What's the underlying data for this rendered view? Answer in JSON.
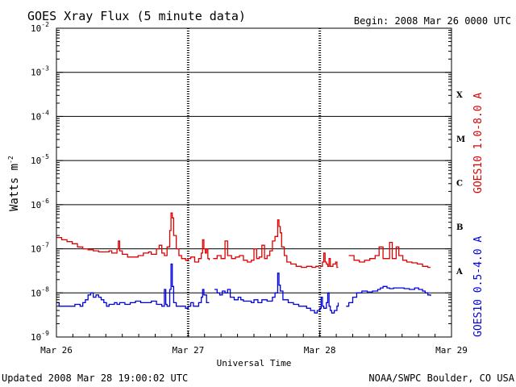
{
  "header": {
    "title": "GOES Xray Flux (5 minute data)",
    "begin": "Begin:  2008 Mar 26 0000 UTC"
  },
  "footer": {
    "updated": "Updated 2008 Mar 28 19:00:02 UTC",
    "credit": "NOAA/SWPC Boulder, CO USA"
  },
  "colors": {
    "long": "#dd0000",
    "short": "#0000dd",
    "axis": "#000000"
  },
  "chart_data": {
    "type": "line",
    "title": "GOES Xray Flux (5 minute data)",
    "xlabel": "Universal Time",
    "ylabel": {
      "base": "Watts m",
      "sup": "-2"
    },
    "y_scale": "log",
    "ylim": [
      1e-09,
      0.01
    ],
    "xlim": [
      "2008-03-26",
      "2008-03-29"
    ],
    "y_ticks": [
      {
        "base": "10",
        "exp": "-2",
        "value": 0.01
      },
      {
        "base": "10",
        "exp": "-3",
        "value": 0.001
      },
      {
        "base": "10",
        "exp": "-4",
        "value": 0.0001
      },
      {
        "base": "10",
        "exp": "-5",
        "value": 1e-05
      },
      {
        "base": "10",
        "exp": "-6",
        "value": 1e-06
      },
      {
        "base": "10",
        "exp": "-7",
        "value": 1e-07
      },
      {
        "base": "10",
        "exp": "-8",
        "value": 1e-08
      },
      {
        "base": "10",
        "exp": "-9",
        "value": 1e-09
      }
    ],
    "x_ticks": [
      {
        "label": "Mar 26",
        "value": "2008-03-26"
      },
      {
        "label": "Mar 27",
        "value": "2008-03-27"
      },
      {
        "label": "Mar 28",
        "value": "2008-03-28"
      },
      {
        "label": "Mar 29",
        "value": "2008-03-29"
      }
    ],
    "flare_classes": [
      {
        "label": "X",
        "value": 0.0001
      },
      {
        "label": "M",
        "value": 1e-05
      },
      {
        "label": "C",
        "value": 1e-06
      },
      {
        "label": "B",
        "value": 1e-07
      },
      {
        "label": "A",
        "value": 1e-08
      }
    ],
    "grid": "horizontal lines at each decade from 1e-3 to 1e-8",
    "series": [
      {
        "name": "GOES10 1.0-8.0 A",
        "color": "#dd0000",
        "segments": [
          [
            [
              0.0,
              1.8e-07
            ],
            [
              0.04,
              1.6e-07
            ],
            [
              0.08,
              1.45e-07
            ],
            [
              0.12,
              1.3e-07
            ],
            [
              0.16,
              1.1e-07
            ],
            [
              0.2,
              1e-07
            ],
            [
              0.24,
              9.5e-08
            ],
            [
              0.28,
              9e-08
            ],
            [
              0.32,
              8.5e-08
            ],
            [
              0.36,
              8.5e-08
            ],
            [
              0.4,
              9e-08
            ],
            [
              0.42,
              8e-08
            ],
            [
              0.44,
              8e-08
            ],
            [
              0.46,
              1e-07
            ],
            [
              0.47,
              1.5e-07
            ],
            [
              0.48,
              9e-08
            ],
            [
              0.5,
              7.5e-08
            ],
            [
              0.54,
              6.5e-08
            ],
            [
              0.58,
              6.5e-08
            ],
            [
              0.62,
              7e-08
            ],
            [
              0.66,
              8e-08
            ],
            [
              0.7,
              8.5e-08
            ],
            [
              0.72,
              7.5e-08
            ],
            [
              0.74,
              7.5e-08
            ],
            [
              0.76,
              1e-07
            ],
            [
              0.78,
              1.2e-07
            ],
            [
              0.8,
              8e-08
            ],
            [
              0.82,
              7e-08
            ],
            [
              0.84,
              1.1e-07
            ],
            [
              0.86,
              2.6e-07
            ],
            [
              0.87,
              6.5e-07
            ],
            [
              0.88,
              5e-07
            ],
            [
              0.89,
              2e-07
            ],
            [
              0.91,
              1e-07
            ],
            [
              0.93,
              7e-08
            ],
            [
              0.95,
              6e-08
            ],
            [
              0.98,
              5.5e-08
            ],
            [
              1.0,
              6e-08
            ],
            [
              1.02,
              6.5e-08
            ],
            [
              1.05,
              5e-08
            ],
            [
              1.08,
              6e-08
            ],
            [
              1.1,
              8e-08
            ],
            [
              1.11,
              1.6e-07
            ],
            [
              1.12,
              1e-07
            ],
            [
              1.13,
              8e-08
            ],
            [
              1.14,
              1e-07
            ],
            [
              1.15,
              6e-08
            ],
            [
              1.16,
              5.5e-08
            ]
          ],
          [
            [
              1.19,
              6e-08
            ],
            [
              1.22,
              7e-08
            ],
            [
              1.25,
              6e-08
            ],
            [
              1.28,
              1.5e-07
            ],
            [
              1.3,
              7e-08
            ],
            [
              1.33,
              6e-08
            ],
            [
              1.36,
              6.5e-08
            ],
            [
              1.39,
              7e-08
            ],
            [
              1.42,
              5.5e-08
            ],
            [
              1.45,
              5e-08
            ],
            [
              1.48,
              5.5e-08
            ],
            [
              1.5,
              1e-07
            ],
            [
              1.52,
              6e-08
            ],
            [
              1.54,
              6.5e-08
            ],
            [
              1.56,
              1.2e-07
            ],
            [
              1.58,
              6e-08
            ],
            [
              1.6,
              7e-08
            ],
            [
              1.62,
              9e-08
            ],
            [
              1.64,
              1.5e-07
            ],
            [
              1.66,
              1.9e-07
            ],
            [
              1.68,
              4.5e-07
            ],
            [
              1.69,
              3.2e-07
            ],
            [
              1.7,
              2.3e-07
            ],
            [
              1.71,
              1.1e-07
            ],
            [
              1.73,
              7e-08
            ],
            [
              1.75,
              5e-08
            ],
            [
              1.78,
              4.5e-08
            ],
            [
              1.82,
              4e-08
            ],
            [
              1.86,
              3.8e-08
            ],
            [
              1.9,
              4e-08
            ],
            [
              1.94,
              3.8e-08
            ],
            [
              1.97,
              4e-08
            ],
            [
              1.99,
              3.8e-08
            ]
          ],
          [
            [
              2.0,
              4e-08
            ],
            [
              2.02,
              5e-08
            ],
            [
              2.03,
              8e-08
            ],
            [
              2.04,
              5e-08
            ],
            [
              2.05,
              4.5e-08
            ],
            [
              2.06,
              4e-08
            ],
            [
              2.07,
              6e-08
            ],
            [
              2.08,
              4e-08
            ],
            [
              2.09,
              4e-08
            ],
            [
              2.1,
              4.5e-08
            ],
            [
              2.12,
              5e-08
            ],
            [
              2.13,
              3.8e-08
            ],
            [
              2.14,
              3.8e-08
            ]
          ],
          [
            [
              2.22,
              7e-08
            ],
            [
              2.26,
              5.5e-08
            ],
            [
              2.3,
              5e-08
            ],
            [
              2.34,
              5.5e-08
            ],
            [
              2.38,
              6e-08
            ],
            [
              2.4,
              6e-08
            ],
            [
              2.42,
              7e-08
            ],
            [
              2.45,
              1.1e-07
            ],
            [
              2.48,
              6e-08
            ],
            [
              2.51,
              6e-08
            ],
            [
              2.53,
              1.4e-07
            ],
            [
              2.55,
              6e-08
            ],
            [
              2.58,
              1.1e-07
            ],
            [
              2.6,
              7e-08
            ],
            [
              2.63,
              5.5e-08
            ],
            [
              2.66,
              5e-08
            ],
            [
              2.7,
              4.8e-08
            ],
            [
              2.74,
              4.5e-08
            ],
            [
              2.78,
              4e-08
            ],
            [
              2.82,
              3.8e-08
            ],
            [
              2.84,
              3.8e-08
            ]
          ]
        ]
      },
      {
        "name": "GOES10 0.5-4.0 A",
        "color": "#0000dd",
        "segments": [
          [
            [
              0.0,
              6e-09
            ],
            [
              0.02,
              5e-09
            ],
            [
              0.06,
              5e-09
            ],
            [
              0.1,
              5e-09
            ],
            [
              0.12,
              5e-09
            ],
            [
              0.14,
              5.5e-09
            ],
            [
              0.18,
              5e-09
            ],
            [
              0.2,
              6e-09
            ],
            [
              0.22,
              7e-09
            ],
            [
              0.24,
              9e-09
            ],
            [
              0.26,
              1e-08
            ],
            [
              0.28,
              8e-09
            ],
            [
              0.3,
              9e-09
            ],
            [
              0.32,
              8e-09
            ],
            [
              0.34,
              7e-09
            ],
            [
              0.36,
              6e-09
            ],
            [
              0.38,
              5e-09
            ],
            [
              0.4,
              5.5e-09
            ],
            [
              0.44,
              6e-09
            ],
            [
              0.46,
              5.5e-09
            ],
            [
              0.48,
              6e-09
            ],
            [
              0.52,
              5.5e-09
            ],
            [
              0.56,
              6e-09
            ],
            [
              0.6,
              6.5e-09
            ],
            [
              0.64,
              6e-09
            ],
            [
              0.68,
              6e-09
            ],
            [
              0.72,
              6.5e-09
            ],
            [
              0.76,
              5.5e-09
            ],
            [
              0.8,
              5e-09
            ],
            [
              0.82,
              1.2e-08
            ],
            [
              0.83,
              5.5e-09
            ],
            [
              0.84,
              5e-09
            ],
            [
              0.86,
              1.2e-08
            ],
            [
              0.87,
              4.5e-08
            ],
            [
              0.88,
              1.4e-08
            ],
            [
              0.89,
              6e-09
            ],
            [
              0.91,
              5e-09
            ],
            [
              0.94,
              5e-09
            ],
            [
              0.98,
              4.5e-09
            ],
            [
              1.0,
              5e-09
            ],
            [
              1.02,
              6e-09
            ],
            [
              1.04,
              5e-09
            ],
            [
              1.06,
              5e-09
            ],
            [
              1.08,
              6e-09
            ],
            [
              1.1,
              8e-09
            ],
            [
              1.11,
              1.2e-08
            ],
            [
              1.12,
              9e-09
            ],
            [
              1.14,
              6e-09
            ],
            [
              1.16,
              6e-09
            ]
          ],
          [
            [
              1.2,
              1.2e-08
            ],
            [
              1.22,
              1e-08
            ],
            [
              1.24,
              9e-09
            ],
            [
              1.26,
              1.1e-08
            ],
            [
              1.28,
              1e-08
            ],
            [
              1.3,
              1.2e-08
            ],
            [
              1.32,
              8e-09
            ],
            [
              1.35,
              7e-09
            ],
            [
              1.38,
              8e-09
            ],
            [
              1.4,
              7e-09
            ],
            [
              1.42,
              6.5e-09
            ],
            [
              1.45,
              6.5e-09
            ],
            [
              1.48,
              6e-09
            ],
            [
              1.5,
              7e-09
            ],
            [
              1.53,
              6e-09
            ],
            [
              1.56,
              7e-09
            ],
            [
              1.6,
              6.5e-09
            ],
            [
              1.64,
              8e-09
            ],
            [
              1.66,
              1e-08
            ],
            [
              1.68,
              2.8e-08
            ],
            [
              1.69,
              1.5e-08
            ],
            [
              1.7,
              1.1e-08
            ],
            [
              1.72,
              7e-09
            ],
            [
              1.76,
              6e-09
            ],
            [
              1.8,
              5.5e-09
            ],
            [
              1.84,
              5e-09
            ],
            [
              1.88,
              5e-09
            ],
            [
              1.9,
              4.5e-09
            ],
            [
              1.93,
              4e-09
            ],
            [
              1.96,
              3.5e-09
            ],
            [
              1.98,
              4e-09
            ],
            [
              2.0,
              4.5e-09
            ],
            [
              2.01,
              8e-09
            ],
            [
              2.02,
              5e-09
            ],
            [
              2.03,
              4.5e-09
            ],
            [
              2.05,
              6e-09
            ],
            [
              2.06,
              1e-08
            ],
            [
              2.07,
              5e-09
            ],
            [
              2.08,
              4e-09
            ],
            [
              2.09,
              3.5e-09
            ],
            [
              2.11,
              4e-09
            ],
            [
              2.13,
              5e-09
            ],
            [
              2.14,
              6e-09
            ]
          ],
          [
            [
              2.2,
              5e-09
            ],
            [
              2.22,
              6e-09
            ],
            [
              2.25,
              8e-09
            ],
            [
              2.28,
              1e-08
            ],
            [
              2.32,
              1.1e-08
            ],
            [
              2.36,
              1.05e-08
            ],
            [
              2.4,
              1.1e-08
            ],
            [
              2.44,
              1.2e-08
            ],
            [
              2.46,
              1.3e-08
            ],
            [
              2.48,
              1.4e-08
            ],
            [
              2.51,
              1.3e-08
            ],
            [
              2.53,
              1.25e-08
            ],
            [
              2.56,
              1.3e-08
            ],
            [
              2.6,
              1.3e-08
            ],
            [
              2.64,
              1.25e-08
            ],
            [
              2.68,
              1.2e-08
            ],
            [
              2.72,
              1.3e-08
            ],
            [
              2.75,
              1.2e-08
            ],
            [
              2.78,
              1.1e-08
            ],
            [
              2.8,
              1e-08
            ],
            [
              2.82,
              9e-09
            ],
            [
              2.84,
              8.5e-09
            ]
          ]
        ]
      }
    ]
  }
}
